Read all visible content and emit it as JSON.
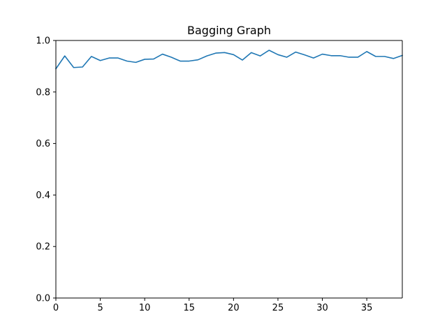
{
  "chart_data": {
    "type": "line",
    "title": "Bagging Graph",
    "xlabel": "",
    "ylabel": "",
    "xlim": [
      0,
      39
    ],
    "ylim": [
      0.0,
      1.0
    ],
    "grid": false,
    "legend": "none",
    "x_ticks": [
      0,
      5,
      10,
      15,
      20,
      25,
      30,
      35
    ],
    "x_tick_labels": [
      "0",
      "5",
      "10",
      "15",
      "20",
      "25",
      "30",
      "35"
    ],
    "y_ticks": [
      0.0,
      0.2,
      0.4,
      0.6,
      0.8,
      1.0
    ],
    "y_tick_labels": [
      "0.0",
      "0.2",
      "0.4",
      "0.6",
      "0.8",
      "1.0"
    ],
    "series": [
      {
        "color": "#1f77b4",
        "x": [
          0,
          1,
          2,
          3,
          4,
          5,
          6,
          7,
          8,
          9,
          10,
          11,
          12,
          13,
          14,
          15,
          16,
          17,
          18,
          19,
          20,
          21,
          22,
          23,
          24,
          25,
          26,
          27,
          28,
          29,
          30,
          31,
          32,
          33,
          34,
          35,
          36,
          37,
          38,
          39
        ],
        "values": [
          0.89,
          0.94,
          0.895,
          0.897,
          0.938,
          0.922,
          0.932,
          0.932,
          0.92,
          0.915,
          0.927,
          0.928,
          0.947,
          0.935,
          0.92,
          0.92,
          0.925,
          0.94,
          0.951,
          0.953,
          0.945,
          0.924,
          0.953,
          0.94,
          0.962,
          0.945,
          0.935,
          0.955,
          0.944,
          0.932,
          0.947,
          0.941,
          0.941,
          0.935,
          0.935,
          0.957,
          0.938,
          0.938,
          0.93,
          0.942
        ]
      }
    ]
  }
}
